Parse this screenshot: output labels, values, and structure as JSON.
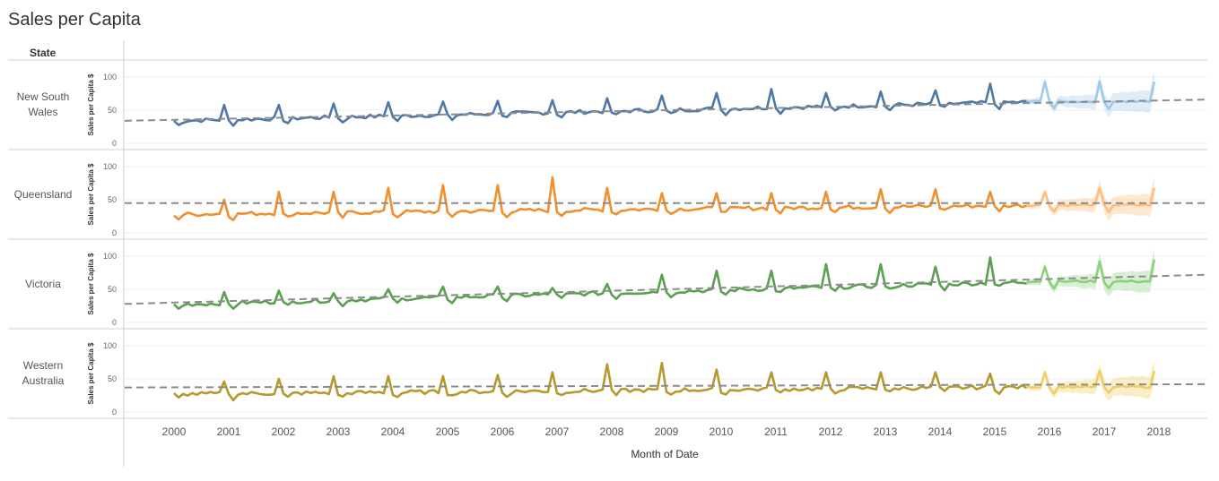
{
  "title": "Sales per Capita",
  "row_header": "State",
  "chart_data": {
    "type": "line",
    "title": "Sales per Capita",
    "xlabel": "Month of Date",
    "ylabel": "Sales per Capita $",
    "ylim": [
      0,
      115
    ],
    "y_ticks": [
      0,
      50,
      100
    ],
    "x_ticks": [
      "2000",
      "2001",
      "2002",
      "2003",
      "2004",
      "2005",
      "2006",
      "2007",
      "2008",
      "2009",
      "2010",
      "2011",
      "2012",
      "2013",
      "2014",
      "2015",
      "2016",
      "2017",
      "2018"
    ],
    "actual_range": [
      "2000-01",
      "2015-08"
    ],
    "forecast_range": [
      "2015-09",
      "2017-12"
    ],
    "trend_line": "dashed",
    "grid": true,
    "panels": [
      {
        "state": "New South Wales",
        "color": "#4e79a7",
        "forecast_color": "#a0cbe8",
        "base": [
          34,
          63
        ],
        "annual_peak": [
          58,
          58,
          60,
          62,
          63,
          64,
          65,
          68,
          72,
          76,
          82,
          76,
          78,
          80,
          90,
          92
        ],
        "forecast_peaks": [
          93,
          93,
          93
        ],
        "trend": [
          34,
          66
        ]
      },
      {
        "state": "Queensland",
        "color": "#f28e2b",
        "forecast_color": "#ffbe7d",
        "base": [
          28,
          42
        ],
        "annual_peak": [
          50,
          62,
          62,
          68,
          72,
          72,
          84,
          68,
          60,
          60,
          60,
          62,
          66,
          66,
          62,
          64
        ],
        "forecast_peaks": [
          62,
          68,
          68
        ],
        "trend": [
          45,
          45
        ]
      },
      {
        "state": "Victoria",
        "color": "#59a14f",
        "forecast_color": "#8cd17d",
        "base": [
          27,
          62
        ],
        "annual_peak": [
          46,
          48,
          44,
          50,
          54,
          54,
          52,
          58,
          72,
          78,
          78,
          88,
          88,
          84,
          98,
          88
        ],
        "forecast_peaks": [
          84,
          92,
          95
        ],
        "trend": [
          28,
          72
        ]
      },
      {
        "state": "Western Australia",
        "color": "#b6992d",
        "forecast_color": "#f1ce63",
        "base": [
          27,
          38
        ],
        "annual_peak": [
          46,
          50,
          54,
          54,
          54,
          56,
          60,
          72,
          74,
          64,
          60,
          60,
          60,
          60,
          58,
          56
        ],
        "forecast_peaks": [
          60,
          62,
          62
        ],
        "trend": [
          37,
          42
        ]
      }
    ]
  }
}
